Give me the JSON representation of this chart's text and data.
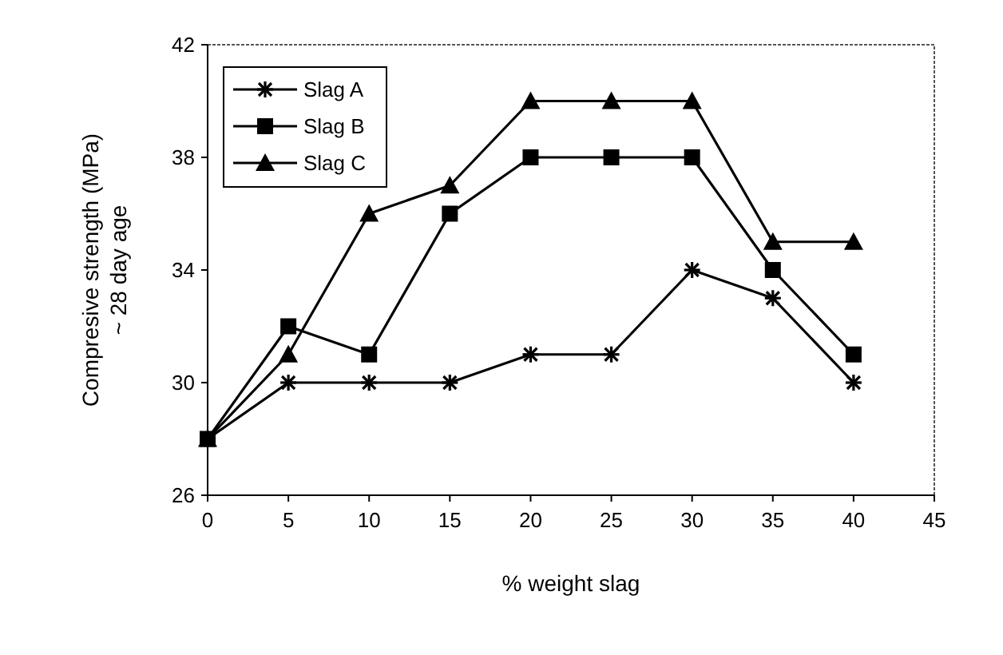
{
  "chart_data": {
    "type": "line",
    "xlabel": "% weight slag",
    "ylabel": "Compresive strength (MPa)\n~ 28 day age",
    "x": [
      0,
      5,
      10,
      15,
      20,
      25,
      30,
      35,
      40
    ],
    "xlim": [
      0,
      45
    ],
    "xticks": [
      0,
      5,
      10,
      15,
      20,
      25,
      30,
      35,
      40,
      45
    ],
    "ylim": [
      26,
      42
    ],
    "yticks": [
      26,
      30,
      34,
      38,
      42
    ],
    "legend": "top left",
    "grid": false,
    "series": [
      {
        "name": "Slag A",
        "color": "#000000",
        "marker": "cross",
        "values": [
          28,
          30,
          30,
          30,
          31,
          31,
          34,
          33,
          30
        ]
      },
      {
        "name": "Slag B",
        "color": "#000000",
        "marker": "square",
        "values": [
          28,
          32,
          31,
          36,
          38,
          38,
          38,
          34,
          31
        ]
      },
      {
        "name": "Slag C",
        "color": "#000000",
        "marker": "triangle",
        "values": [
          28,
          31,
          36,
          37,
          40,
          40,
          40,
          35,
          35
        ]
      }
    ]
  }
}
